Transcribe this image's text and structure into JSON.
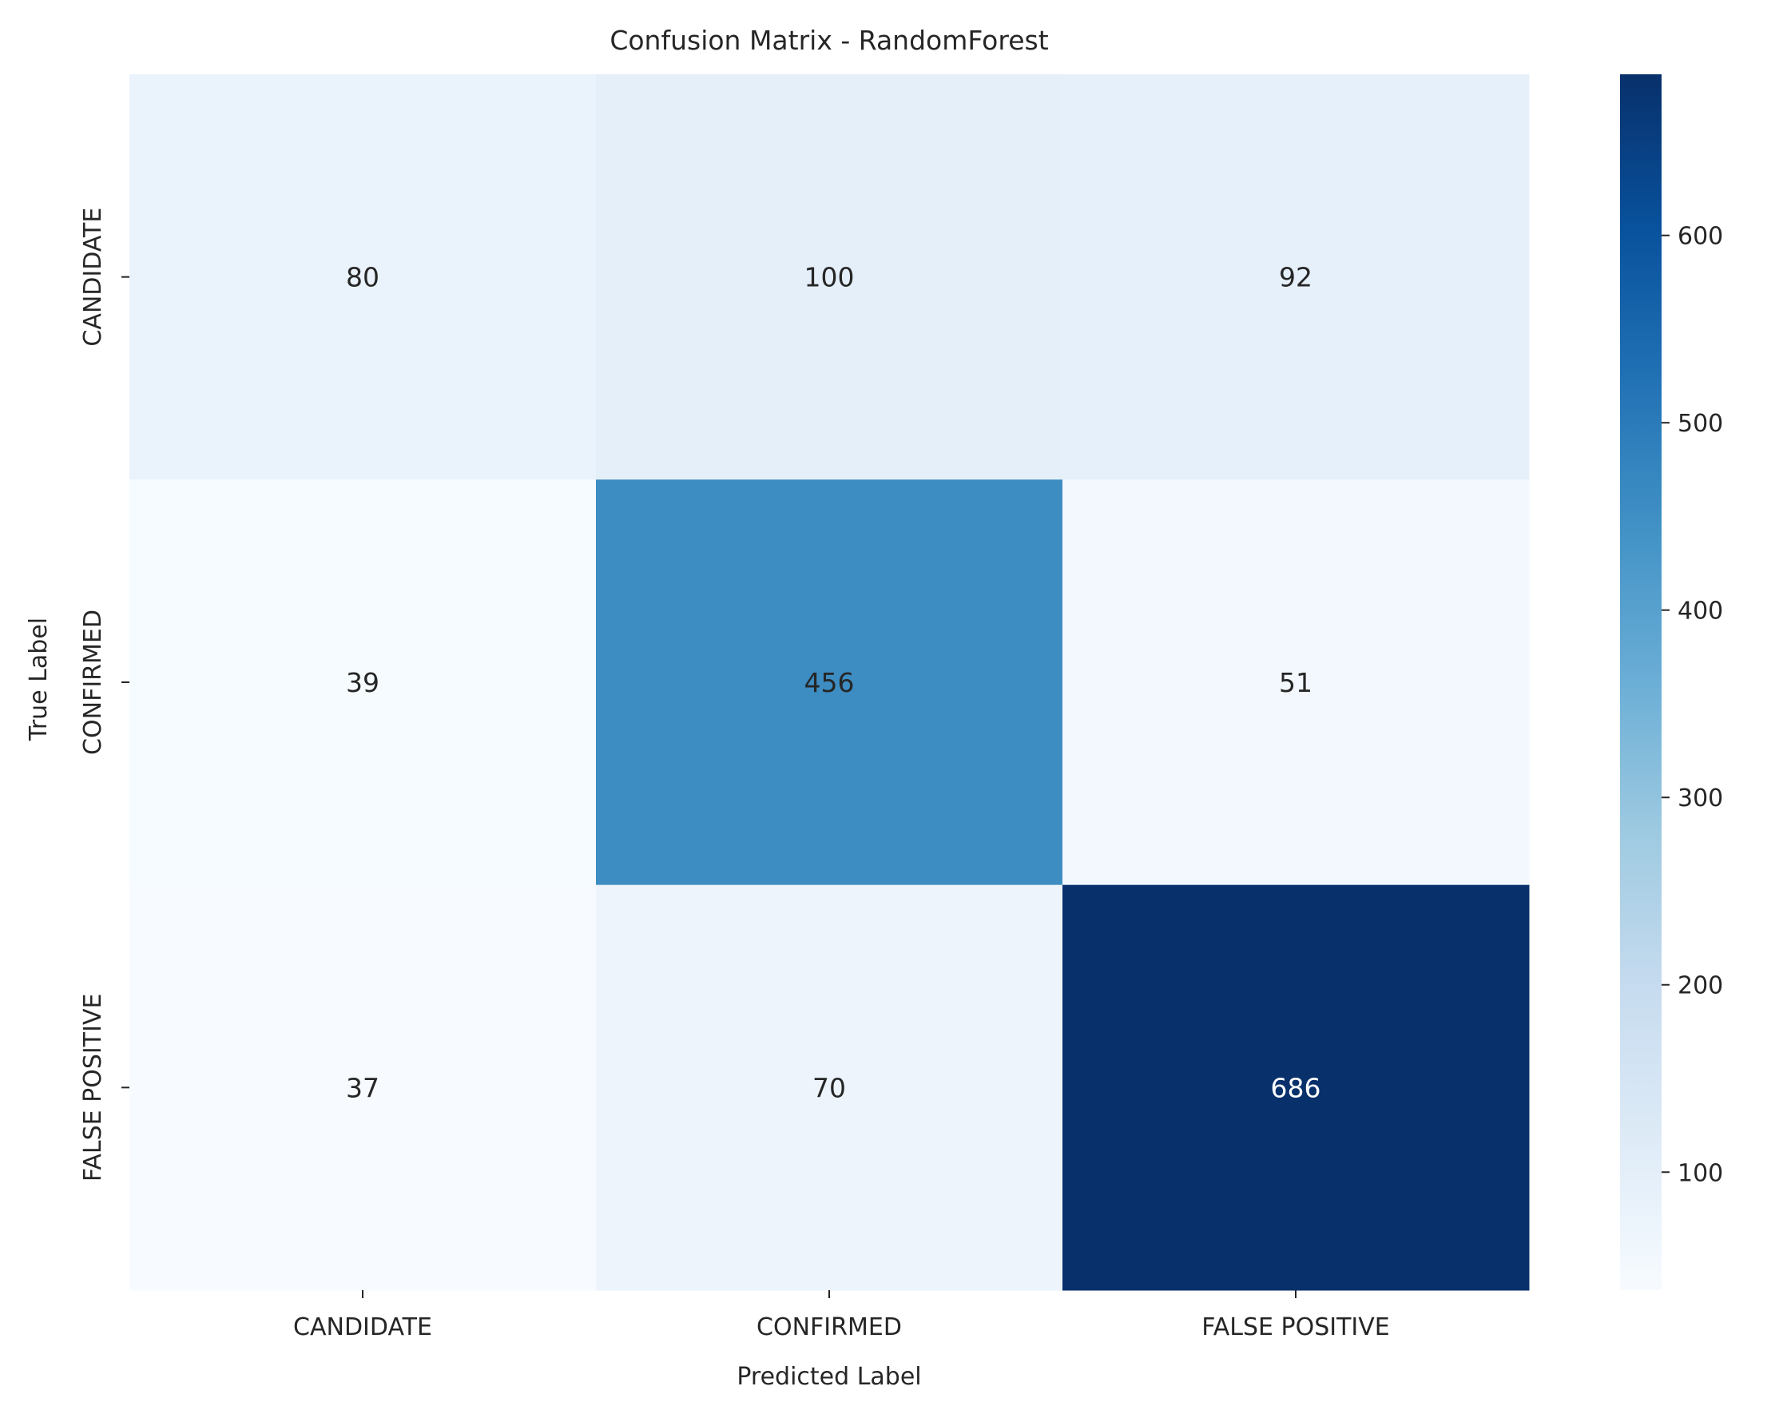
{
  "chart_data": {
    "type": "heatmap",
    "title": "Confusion Matrix - RandomForest",
    "xlabel": "Predicted Label",
    "ylabel": "True Label",
    "x_categories": [
      "CANDIDATE",
      "CONFIRMED",
      "FALSE POSITIVE"
    ],
    "y_categories": [
      "CANDIDATE",
      "CONFIRMED",
      "FALSE POSITIVE"
    ],
    "values": [
      [
        80,
        100,
        92
      ],
      [
        39,
        456,
        51
      ],
      [
        37,
        70,
        686
      ]
    ],
    "colormap": "Blues",
    "colorbar": {
      "vmin": 37,
      "vmax": 686,
      "ticks": [
        100,
        200,
        300,
        400,
        500,
        600
      ]
    },
    "grid": false
  }
}
